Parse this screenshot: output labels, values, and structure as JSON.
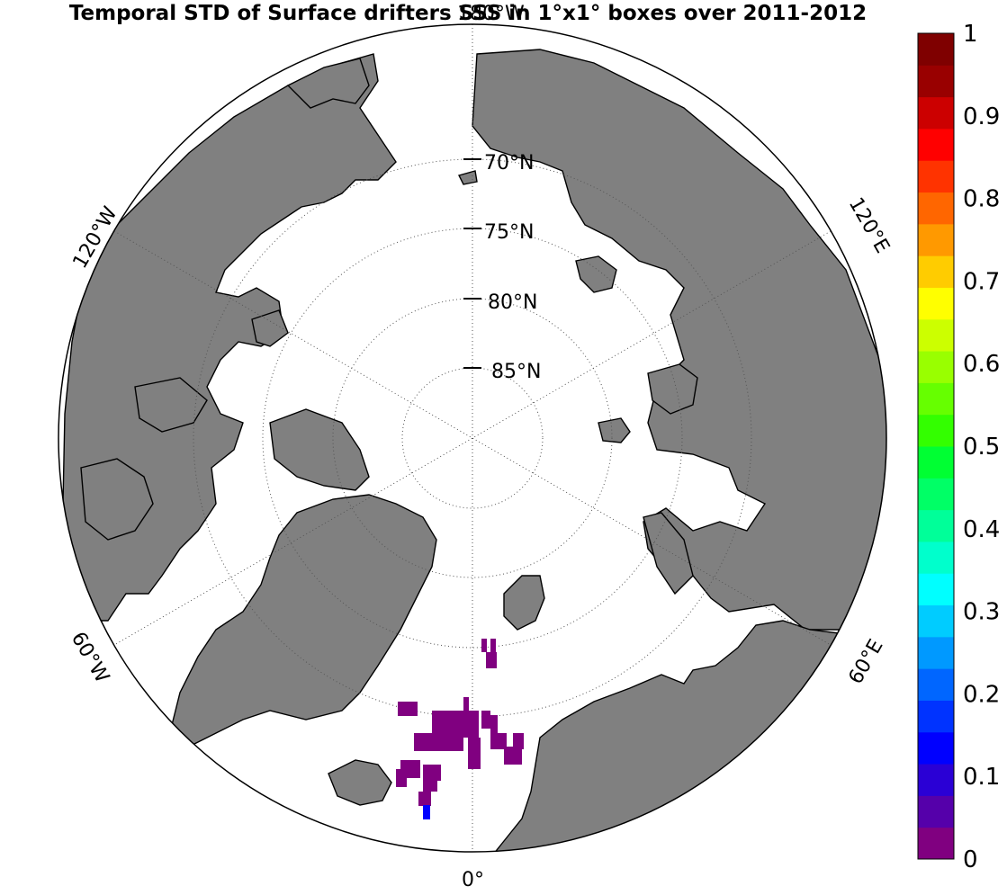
{
  "title": "Temporal STD of Surface drifters SSS in 1°x1° boxes over 2011-2012",
  "map": {
    "projection": "north-polar-stereographic",
    "land_color": "#808080",
    "ocean_color": "#ffffff",
    "latitude_labels": [
      "70°N",
      "75°N",
      "80°N",
      "85°N"
    ],
    "longitude_labels": {
      "top": "180°W",
      "bottom": "0°",
      "upper_left": "120°W",
      "upper_right": "120°E",
      "lower_left": "60°W",
      "lower_right": "60°E"
    },
    "data_boxes_color_value": "0 (purple)",
    "highlight_box_color": "#0000ff"
  },
  "colorbar": {
    "ticks": [
      "0",
      "0.1",
      "0.2",
      "0.3",
      "0.4",
      "0.5",
      "0.6",
      "0.7",
      "0.8",
      "0.9",
      "1"
    ],
    "colors": [
      "#800080",
      "#5500aa",
      "#2a00d5",
      "#0000ff",
      "#0033ff",
      "#0066ff",
      "#0099ff",
      "#00ccff",
      "#00ffff",
      "#00ffcc",
      "#00ff99",
      "#00ff66",
      "#00ff33",
      "#33ff00",
      "#66ff00",
      "#99ff00",
      "#ccff00",
      "#ffff00",
      "#ffcc00",
      "#ff9900",
      "#ff6600",
      "#ff3300",
      "#ff0000",
      "#cc0000",
      "#990000",
      "#7f0000"
    ]
  }
}
